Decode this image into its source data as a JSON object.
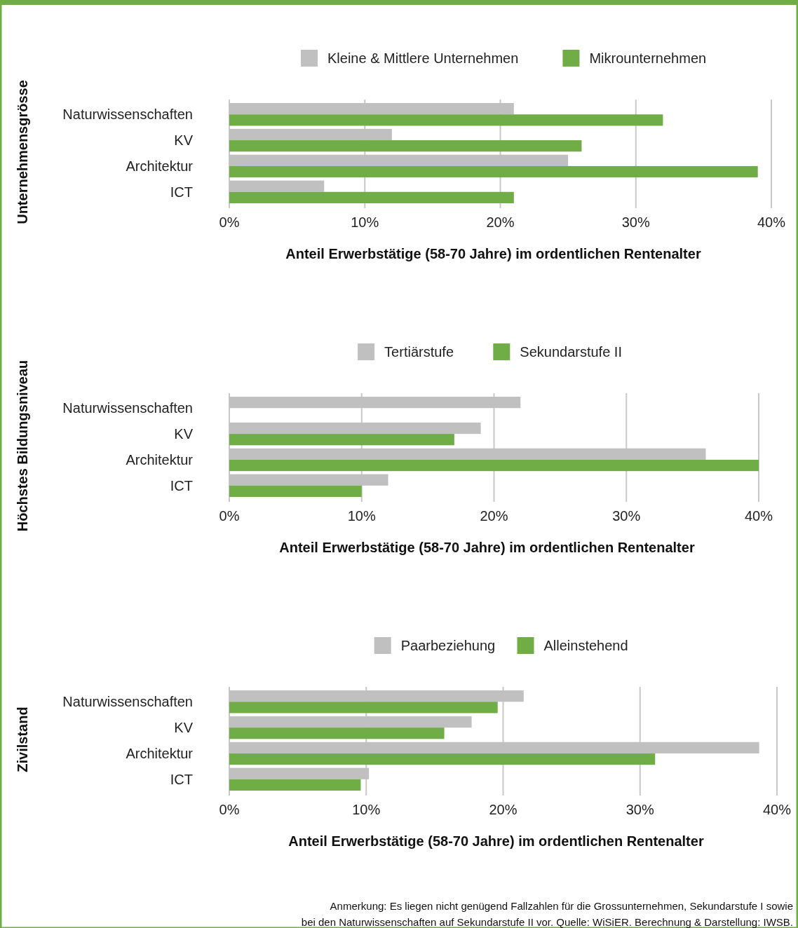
{
  "chart_data": [
    {
      "type": "bar",
      "orientation": "horizontal",
      "ylabel": "Unternehmensgrösse",
      "xlabel": "Anteil Erwerbstätige (58-70 Jahre) im ordentlichen Rentenalter",
      "categories": [
        "Naturwissenschaften",
        "KV",
        "Architektur",
        "ICT"
      ],
      "series": [
        {
          "name": "Kleine & Mittlere Unternehmen",
          "color": "#c0c0c0",
          "values": [
            21,
            12,
            25,
            7
          ]
        },
        {
          "name": "Mikrounternehmen",
          "color": "#70ad47",
          "values": [
            32,
            26,
            39,
            21
          ]
        }
      ],
      "xlim": [
        0,
        40
      ],
      "xticks": [
        {
          "value": 0,
          "label": "0%"
        },
        {
          "value": 10,
          "label": "10%"
        },
        {
          "value": 20,
          "label": "20%"
        },
        {
          "value": 30,
          "label": "30%"
        },
        {
          "value": 40,
          "label": "40%"
        }
      ],
      "grid": "x",
      "legend": "top"
    },
    {
      "type": "bar",
      "orientation": "horizontal",
      "ylabel": "Höchstes Bildungsniveau",
      "xlabel": "Anteil Erwerbstätige (58-70 Jahre) im ordentlichen Rentenalter",
      "categories": [
        "Naturwissenschaften",
        "KV",
        "Architektur",
        "ICT"
      ],
      "series": [
        {
          "name": "Tertiärstufe",
          "color": "#c0c0c0",
          "values": [
            22,
            19,
            36,
            12
          ]
        },
        {
          "name": "Sekundarstufe II",
          "color": "#70ad47",
          "values": [
            null,
            17,
            40,
            10
          ]
        }
      ],
      "xlim": [
        0,
        40
      ],
      "xticks": [
        {
          "value": 0,
          "label": "0%"
        },
        {
          "value": 10,
          "label": "10%"
        },
        {
          "value": 20,
          "label": "20%"
        },
        {
          "value": 30,
          "label": "30%"
        },
        {
          "value": 40,
          "label": "40%"
        }
      ],
      "grid": "x",
      "legend": "top"
    },
    {
      "type": "bar",
      "orientation": "horizontal",
      "ylabel": "Zivilstand",
      "xlabel": "Anteil Erwerbstätige (58-70 Jahre) im ordentlichen Rentenalter",
      "categories": [
        "Naturwissenschaften",
        "KV",
        "Architektur",
        "ICT"
      ],
      "series": [
        {
          "name": "Paarbeziehung",
          "color": "#c0c0c0",
          "values": [
            21.5,
            17.7,
            38.7,
            10.2
          ]
        },
        {
          "name": "Alleinstehend",
          "color": "#70ad47",
          "values": [
            19.6,
            15.7,
            31.1,
            9.6
          ]
        }
      ],
      "xlim": [
        0,
        40
      ],
      "xticks": [
        {
          "value": 0,
          "label": "0%"
        },
        {
          "value": 10,
          "label": "10%"
        },
        {
          "value": 20,
          "label": "20%"
        },
        {
          "value": 30,
          "label": "30%"
        },
        {
          "value": 40,
          "label": "40%"
        }
      ],
      "grid": "x",
      "legend": "top",
      "annotations": [
        "Anmerkung: Es liegen nicht genügend Fallzahlen für die Grossunternehmen, Sekundarstufe I sowie",
        "bei den Naturwissenschaften auf Sekundarstufe II vor. Quelle: WiSiER. Berechnung & Darstellung: IWSB."
      ]
    }
  ]
}
